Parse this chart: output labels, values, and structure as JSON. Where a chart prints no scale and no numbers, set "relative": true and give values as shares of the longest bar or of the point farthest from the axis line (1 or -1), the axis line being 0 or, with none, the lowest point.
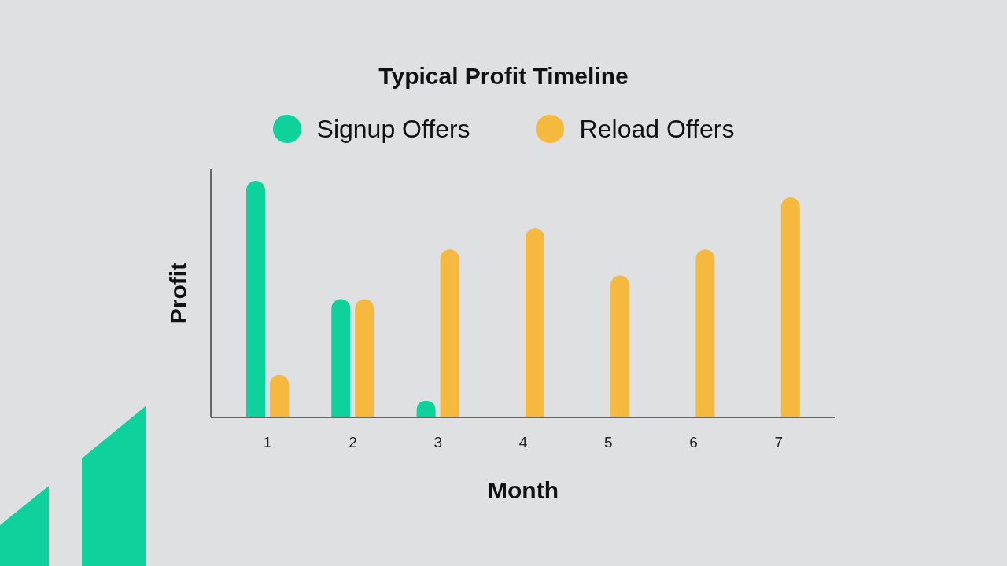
{
  "chart_data": {
    "type": "bar",
    "title": "Typical Profit Timeline",
    "xlabel": "Month",
    "ylabel": "Profit",
    "categories": [
      "1",
      "2",
      "3",
      "4",
      "5",
      "6",
      "7"
    ],
    "relative": true,
    "series": [
      {
        "name": "Signup Offers",
        "color": "#0fd19c",
        "values": [
          1,
          0.5,
          0.07,
          null,
          null,
          null,
          null
        ]
      },
      {
        "name": "Reload Offers",
        "color": "#f6b93f",
        "values": [
          0.18,
          0.5,
          0.71,
          0.8,
          0.6,
          0.71,
          0.93
        ]
      }
    ],
    "legend": "top"
  }
}
